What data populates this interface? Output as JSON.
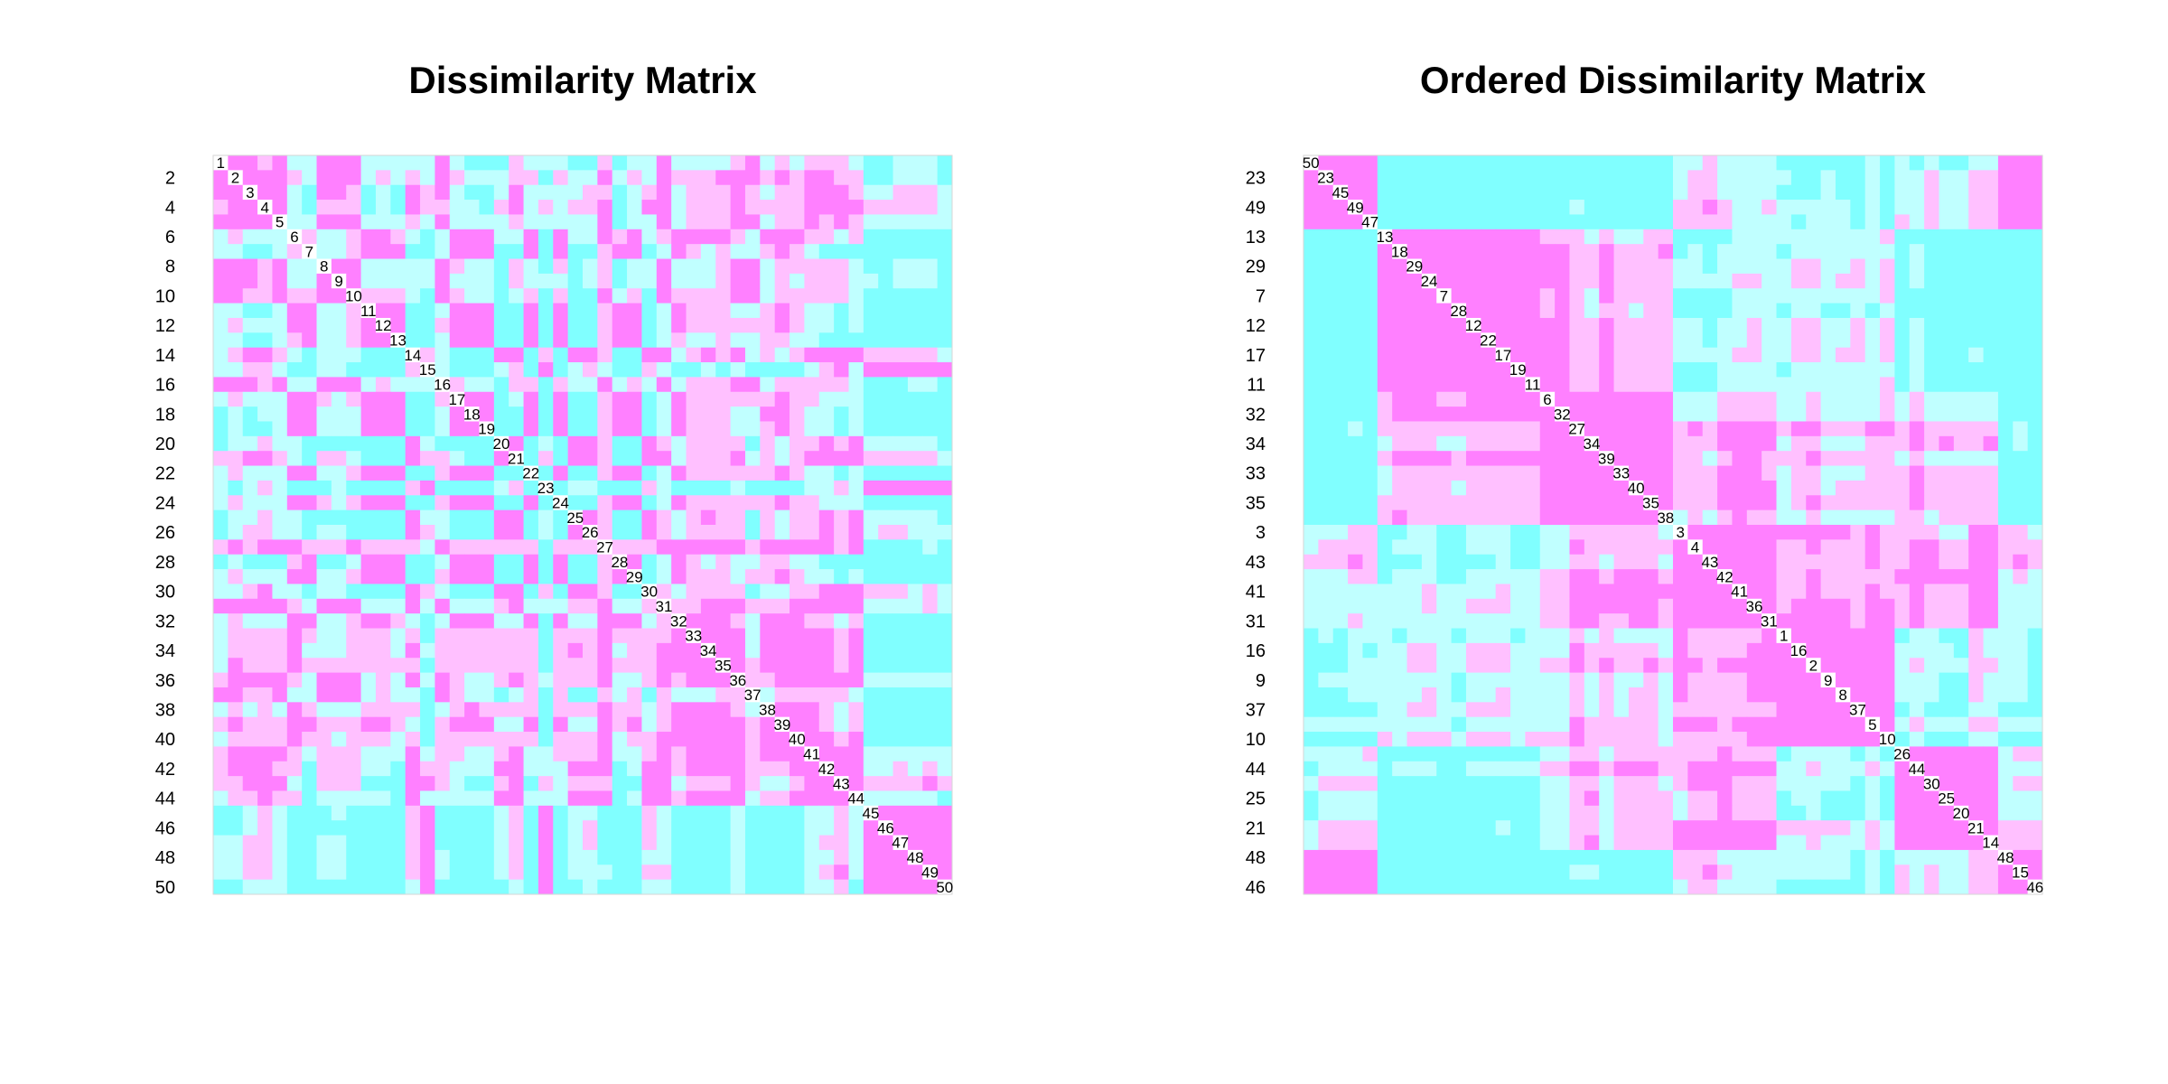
{
  "chart_data": [
    {
      "type": "heatmap",
      "title": "Dissimilarity Matrix",
      "size": 50,
      "order": [
        1,
        2,
        3,
        4,
        5,
        6,
        7,
        8,
        9,
        10,
        11,
        12,
        13,
        14,
        15,
        16,
        17,
        18,
        19,
        20,
        21,
        22,
        23,
        24,
        25,
        26,
        27,
        28,
        29,
        30,
        31,
        32,
        33,
        34,
        35,
        36,
        37,
        38,
        39,
        40,
        41,
        42,
        43,
        44,
        45,
        46,
        47,
        48,
        49,
        50
      ],
      "row_tick_labels": [
        "2",
        "4",
        "6",
        "8",
        "10",
        "12",
        "14",
        "16",
        "18",
        "20",
        "22",
        "24",
        "26",
        "28",
        "30",
        "32",
        "34",
        "36",
        "38",
        "40",
        "42",
        "44",
        "46",
        "48",
        "50"
      ],
      "diagonal_labels": [
        "1",
        "2",
        "3",
        "4",
        "5",
        "6",
        "7",
        "8",
        "9",
        "10",
        "11",
        "12",
        "13",
        "14",
        "15",
        "16",
        "17",
        "18",
        "19",
        "20",
        "21",
        "22",
        "23",
        "24",
        "25",
        "26",
        "27",
        "28",
        "29",
        "30",
        "31",
        "32",
        "33",
        "34",
        "35",
        "36",
        "37",
        "38",
        "39",
        "40",
        "41",
        "42",
        "43",
        "44",
        "45",
        "46",
        "47",
        "48",
        "49",
        "50"
      ],
      "levels": 4,
      "palette": [
        "#ff80ff",
        "#ffc0ff",
        "#c0ffff",
        "#80ffff"
      ]
    },
    {
      "type": "heatmap",
      "title": "Ordered Dissimilarity Matrix",
      "size": 50,
      "order": [
        50,
        23,
        45,
        49,
        47,
        13,
        18,
        29,
        24,
        7,
        28,
        12,
        22,
        17,
        19,
        11,
        6,
        32,
        27,
        34,
        39,
        33,
        40,
        35,
        38,
        3,
        4,
        43,
        42,
        41,
        36,
        31,
        1,
        16,
        2,
        9,
        8,
        37,
        5,
        10,
        26,
        44,
        30,
        25,
        20,
        21,
        14,
        48,
        15,
        46
      ],
      "row_tick_labels": [
        "23",
        "49",
        "13",
        "29",
        "7",
        "12",
        "17",
        "11",
        "32",
        "34",
        "33",
        "35",
        "3",
        "43",
        "41",
        "31",
        "16",
        "9",
        "37",
        "10",
        "44",
        "25",
        "21",
        "48",
        "46"
      ],
      "diagonal_labels": [
        "50",
        "23",
        "45",
        "49",
        "47",
        "13",
        "18",
        "29",
        "24",
        "7",
        "28",
        "12",
        "22",
        "17",
        "19",
        "11",
        "6",
        "32",
        "27",
        "34",
        "39",
        "33",
        "40",
        "35",
        "38",
        "3",
        "4",
        "43",
        "42",
        "41",
        "36",
        "31",
        "1",
        "16",
        "2",
        "9",
        "8",
        "37",
        "5",
        "10",
        "26",
        "44",
        "30",
        "25",
        "20",
        "21",
        "14",
        "48",
        "15",
        "46"
      ],
      "levels": 4,
      "palette": [
        "#ff80ff",
        "#ffc0ff",
        "#c0ffff",
        "#80ffff"
      ]
    }
  ]
}
